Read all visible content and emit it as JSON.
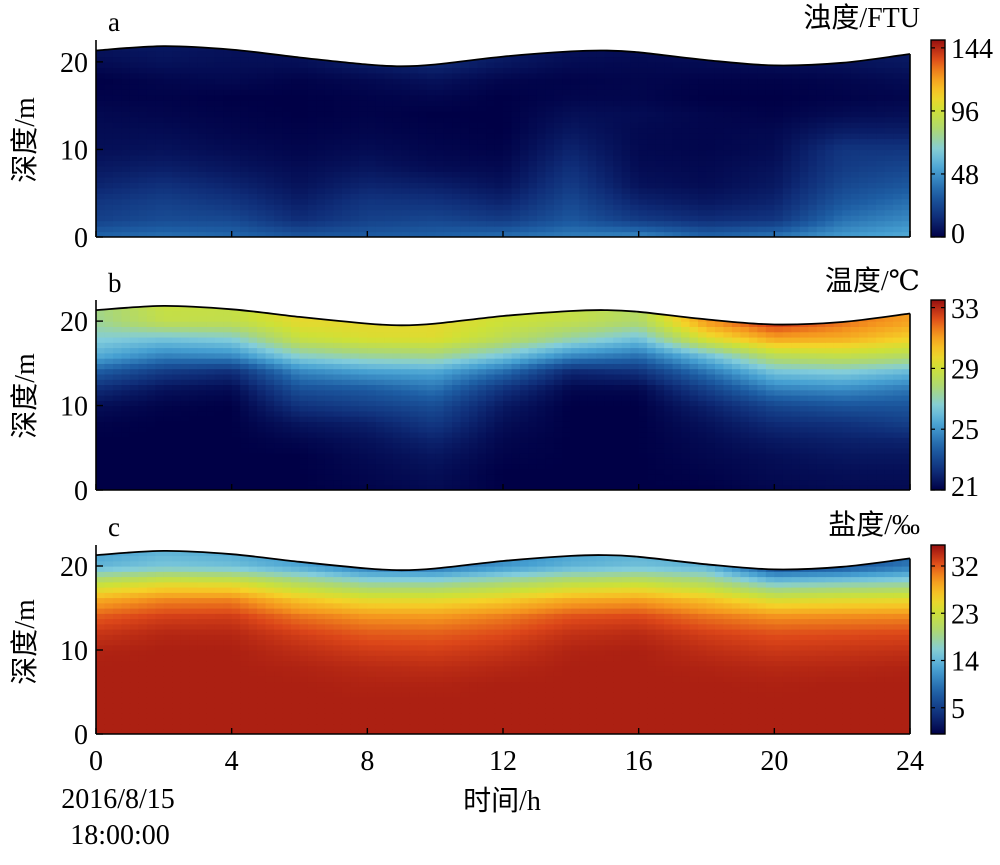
{
  "figure": {
    "xlabel": "时间/h",
    "start_date": "2016/8/15",
    "start_time": "18:00:00"
  },
  "chart_data": [
    {
      "type": "heatmap",
      "panel_letter": "a",
      "title": "浊度/FTU",
      "ylabel": "深度/m",
      "x_ticks": [
        0,
        4,
        8,
        12,
        16,
        20,
        24
      ],
      "y_ticks": [
        0,
        10,
        20
      ],
      "xlim": [
        0,
        24
      ],
      "ylim": [
        0,
        22.5
      ],
      "colorbar": {
        "ticks": [
          0,
          48,
          96,
          144
        ],
        "range": [
          0,
          150
        ],
        "palette": "jet"
      },
      "surface": {
        "x": [
          0,
          2,
          4,
          6,
          8,
          9,
          10,
          12,
          14,
          15,
          16,
          18,
          20,
          22,
          24
        ],
        "y": [
          21.3,
          21.8,
          21.4,
          20.5,
          19.7,
          19.5,
          19.7,
          20.6,
          21.2,
          21.3,
          21.1,
          20.2,
          19.6,
          19.9,
          20.9
        ]
      },
      "grid": {
        "x": [
          0,
          2,
          4,
          6,
          8,
          10,
          12,
          14,
          16,
          18,
          20,
          22,
          24
        ],
        "y": [
          0,
          2,
          4,
          6,
          8,
          10,
          12,
          14,
          16,
          18,
          20,
          22
        ],
        "z": [
          [
            35,
            38,
            36,
            30,
            32,
            34,
            38,
            42,
            45,
            35,
            40,
            50,
            55
          ],
          [
            22,
            26,
            25,
            15,
            22,
            24,
            20,
            30,
            20,
            15,
            18,
            38,
            45
          ],
          [
            18,
            22,
            18,
            10,
            18,
            17,
            12,
            25,
            12,
            8,
            12,
            30,
            38
          ],
          [
            12,
            16,
            12,
            6,
            12,
            10,
            6,
            20,
            6,
            4,
            8,
            24,
            30
          ],
          [
            8,
            10,
            7,
            4,
            7,
            4,
            3,
            16,
            4,
            3,
            6,
            20,
            24
          ],
          [
            5,
            6,
            4,
            2,
            4,
            2,
            1,
            12,
            3,
            2,
            4,
            18,
            18
          ],
          [
            4,
            4,
            2,
            1,
            2,
            1,
            0,
            8,
            3,
            2,
            3,
            10,
            10
          ],
          [
            3,
            2,
            1,
            0,
            1,
            0,
            0,
            5,
            4,
            2,
            1,
            4,
            5
          ],
          [
            1,
            1,
            0,
            0,
            1,
            2,
            0,
            2,
            2,
            0,
            0,
            1,
            2
          ],
          [
            0,
            2,
            3,
            1,
            3,
            6,
            2,
            1,
            2,
            1,
            1,
            2,
            4
          ],
          [
            4,
            6,
            5,
            5,
            10,
            14,
            8,
            4,
            3,
            4,
            5,
            6,
            8
          ],
          [
            7,
            8,
            6,
            6,
            10,
            14,
            9,
            6,
            5,
            6,
            6,
            8,
            9
          ]
        ]
      }
    },
    {
      "type": "heatmap",
      "panel_letter": "b",
      "title": "温度/℃",
      "ylabel": "深度/m",
      "x_ticks": [
        0,
        4,
        8,
        12,
        16,
        20,
        24
      ],
      "y_ticks": [
        0,
        10,
        20
      ],
      "xlim": [
        0,
        24
      ],
      "ylim": [
        0,
        22.5
      ],
      "colorbar": {
        "ticks": [
          21,
          25,
          29,
          33
        ],
        "range": [
          21,
          33.5
        ],
        "palette": "jet"
      },
      "surface": {
        "x": [
          0,
          2,
          4,
          6,
          8,
          9,
          10,
          12,
          14,
          15,
          16,
          18,
          20,
          22,
          24
        ],
        "y": [
          21.3,
          21.8,
          21.4,
          20.5,
          19.7,
          19.5,
          19.7,
          20.6,
          21.2,
          21.3,
          21.1,
          20.2,
          19.6,
          19.9,
          20.9
        ]
      },
      "grid": {
        "x": [
          0,
          2,
          4,
          6,
          8,
          10,
          12,
          14,
          16,
          18,
          20,
          22,
          24
        ],
        "y": [
          0,
          2,
          4,
          6,
          8,
          10,
          12,
          14,
          16,
          18,
          20,
          22
        ],
        "z": [
          [
            21.0,
            21.0,
            21.0,
            21.0,
            21.1,
            21.3,
            21.0,
            21.0,
            21.0,
            21.0,
            21.2,
            21.3,
            21.3
          ],
          [
            21.0,
            21.0,
            21.0,
            21.0,
            21.2,
            21.4,
            21.0,
            21.0,
            21.0,
            21.1,
            21.3,
            21.4,
            21.4
          ],
          [
            21.0,
            21.0,
            21.0,
            21.0,
            21.3,
            21.6,
            21.1,
            21.0,
            21.0,
            21.2,
            21.4,
            21.6,
            21.6
          ],
          [
            21.0,
            21.0,
            21.0,
            21.2,
            21.5,
            22.0,
            21.2,
            21.0,
            21.0,
            21.3,
            21.7,
            21.9,
            22.0
          ],
          [
            21.1,
            21.0,
            21.0,
            21.6,
            21.9,
            22.6,
            21.4,
            21.0,
            21.0,
            21.5,
            22.2,
            22.4,
            22.8
          ],
          [
            21.4,
            21.1,
            21.0,
            22.4,
            22.8,
            23.2,
            21.7,
            21.0,
            21.0,
            21.9,
            23.0,
            23.4,
            23.4
          ],
          [
            22.2,
            21.5,
            21.3,
            23.3,
            23.6,
            24.2,
            22.4,
            21.2,
            21.2,
            22.8,
            24.5,
            24.8,
            24.3
          ],
          [
            23.6,
            22.6,
            22.2,
            24.6,
            25.2,
            25.4,
            24.0,
            22.0,
            22.3,
            24.2,
            26.2,
            26.5,
            25.9
          ],
          [
            25.6,
            24.6,
            24.8,
            26.8,
            27.4,
            27.6,
            26.4,
            24.8,
            24.2,
            26.2,
            28.4,
            28.7,
            28.2
          ],
          [
            26.6,
            26.3,
            26.6,
            28.8,
            29.3,
            29.4,
            28.4,
            27.2,
            26.2,
            29.4,
            31.0,
            30.8,
            30.0
          ],
          [
            27.4,
            28.6,
            28.6,
            29.6,
            29.6,
            29.6,
            29.0,
            28.6,
            28.0,
            31.2,
            32.8,
            31.8,
            31.0
          ],
          [
            27.6,
            28.8,
            28.7,
            29.7,
            29.7,
            29.6,
            29.1,
            28.8,
            28.2,
            31.4,
            33.0,
            32.0,
            31.2
          ]
        ]
      }
    },
    {
      "type": "heatmap",
      "panel_letter": "c",
      "title": "盐度/‰",
      "ylabel": "深度/m",
      "x_ticks": [
        0,
        4,
        8,
        12,
        16,
        20,
        24
      ],
      "y_ticks": [
        0,
        10,
        20
      ],
      "xlim": [
        0,
        24
      ],
      "ylim": [
        0,
        22.5
      ],
      "colorbar": {
        "ticks": [
          5,
          14,
          23,
          32
        ],
        "range": [
          0,
          36
        ],
        "palette": "jet"
      },
      "surface": {
        "x": [
          0,
          2,
          4,
          6,
          8,
          9,
          10,
          12,
          14,
          15,
          16,
          18,
          20,
          22,
          24
        ],
        "y": [
          21.3,
          21.8,
          21.4,
          20.5,
          19.7,
          19.5,
          19.7,
          20.6,
          21.2,
          21.3,
          21.1,
          20.2,
          19.6,
          19.9,
          20.9
        ]
      },
      "grid": {
        "x": [
          0,
          2,
          4,
          6,
          8,
          10,
          12,
          14,
          16,
          18,
          20,
          22,
          24
        ],
        "y": [
          0,
          2,
          4,
          6,
          8,
          10,
          12,
          14,
          16,
          18,
          20,
          22
        ],
        "z": [
          [
            35.0,
            35.0,
            35.0,
            35.0,
            35.0,
            35.0,
            35.0,
            35.0,
            35.0,
            35.0,
            35.0,
            35.0,
            35.0
          ],
          [
            35.0,
            35.0,
            35.0,
            35.0,
            35.0,
            35.0,
            35.0,
            35.0,
            35.0,
            35.0,
            35.0,
            35.0,
            35.0
          ],
          [
            35.0,
            35.0,
            35.0,
            35.0,
            35.0,
            35.0,
            35.0,
            35.0,
            35.0,
            35.0,
            35.0,
            35.0,
            35.0
          ],
          [
            35.0,
            35.0,
            35.0,
            35.0,
            34.8,
            34.8,
            35.0,
            35.0,
            35.0,
            35.0,
            34.9,
            35.0,
            35.0
          ],
          [
            35.0,
            35.0,
            35.0,
            34.8,
            34.4,
            34.2,
            34.6,
            35.0,
            35.0,
            34.8,
            34.5,
            34.6,
            34.8
          ],
          [
            34.8,
            35.0,
            35.0,
            34.2,
            33.4,
            33.2,
            33.8,
            34.8,
            35.0,
            34.2,
            33.6,
            33.8,
            34.0
          ],
          [
            33.8,
            34.6,
            34.6,
            33.2,
            32.0,
            31.8,
            32.6,
            34.0,
            34.4,
            33.2,
            32.4,
            32.6,
            32.8
          ],
          [
            32.0,
            33.2,
            33.4,
            31.0,
            29.6,
            29.4,
            30.6,
            32.4,
            32.8,
            31.0,
            29.8,
            30.0,
            30.2
          ],
          [
            28.4,
            30.2,
            30.4,
            26.8,
            24.8,
            24.8,
            26.2,
            28.4,
            29.0,
            27.0,
            24.0,
            24.6,
            25.0
          ],
          [
            22.0,
            24.2,
            24.0,
            20.6,
            17.8,
            17.8,
            19.6,
            21.8,
            22.6,
            20.6,
            15.8,
            16.8,
            17.6
          ],
          [
            14.0,
            15.4,
            14.8,
            12.8,
            9.6,
            9.0,
            11.6,
            13.8,
            14.8,
            13.8,
            6.0,
            7.0,
            9.6
          ],
          [
            12.0,
            13.6,
            12.8,
            11.2,
            7.8,
            7.0,
            10.0,
            12.2,
            13.4,
            12.2,
            4.8,
            5.6,
            8.0
          ]
        ]
      }
    }
  ]
}
